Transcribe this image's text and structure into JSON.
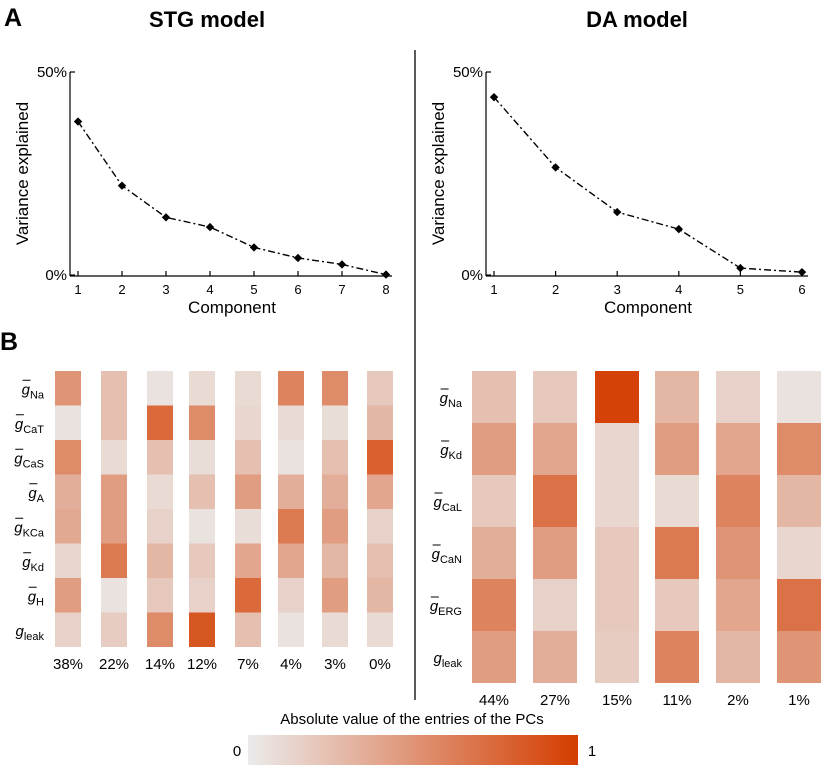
{
  "figure": {
    "panel_a_letter": "A",
    "panel_b_letter": "B",
    "colorbar": {
      "label": "Absolute value of the entries of the PCs",
      "min_label": "0",
      "max_label": "1",
      "color_min": "#ebebeb",
      "color_max": "#d43d00"
    },
    "line_color": "#000000",
    "divider_color": "#000000"
  },
  "chart_data": [
    {
      "id": "stg-variance",
      "type": "line",
      "title": "STG model",
      "xlabel": "Component",
      "ylabel": "Variance explained",
      "x": [
        1,
        2,
        3,
        4,
        5,
        6,
        7,
        8
      ],
      "y": [
        37.8,
        22.0,
        14.2,
        11.8,
        6.8,
        4.2,
        2.6,
        0.1
      ],
      "ylim": [
        0,
        50
      ],
      "yticks": [
        "0%",
        "50%"
      ],
      "line_style": "dash-dot",
      "marker": "diamond"
    },
    {
      "id": "da-variance",
      "type": "line",
      "title": "DA model",
      "xlabel": "Component",
      "ylabel": "Variance explained",
      "x": [
        1,
        2,
        3,
        4,
        5,
        6
      ],
      "y": [
        43.8,
        26.5,
        15.5,
        11.3,
        1.7,
        0.7
      ],
      "ylim": [
        0,
        50
      ],
      "yticks": [
        "0%",
        "50%"
      ],
      "line_style": "dash-dot",
      "marker": "diamond"
    },
    {
      "id": "stg-pc-heatmap",
      "type": "heatmap",
      "rows": [
        {
          "base": "g",
          "sub": "Na"
        },
        {
          "base": "g",
          "sub": "CaT"
        },
        {
          "base": "g",
          "sub": "CaS"
        },
        {
          "base": "g",
          "sub": "A"
        },
        {
          "base": "g",
          "sub": "KCa"
        },
        {
          "base": "g",
          "sub": "Kd"
        },
        {
          "base": "g",
          "sub": "H"
        },
        {
          "base": "g",
          "sub": "leak"
        }
      ],
      "row_bar": [
        true,
        true,
        true,
        true,
        true,
        true,
        true,
        false
      ],
      "columns": [
        "38%",
        "22%",
        "14%",
        "12%",
        "7%",
        "4%",
        "3%",
        "0%"
      ],
      "values": [
        [
          0.5,
          0.25,
          0.05,
          0.1,
          0.1,
          0.6,
          0.55,
          0.2
        ],
        [
          0.05,
          0.25,
          0.75,
          0.55,
          0.12,
          0.1,
          0.08,
          0.3
        ],
        [
          0.55,
          0.1,
          0.25,
          0.08,
          0.25,
          0.05,
          0.25,
          0.8
        ],
        [
          0.35,
          0.45,
          0.1,
          0.25,
          0.45,
          0.35,
          0.35,
          0.4
        ],
        [
          0.38,
          0.45,
          0.15,
          0.05,
          0.08,
          0.65,
          0.45,
          0.15
        ],
        [
          0.12,
          0.65,
          0.3,
          0.2,
          0.4,
          0.4,
          0.3,
          0.25
        ],
        [
          0.45,
          0.05,
          0.2,
          0.15,
          0.75,
          0.15,
          0.45,
          0.3
        ],
        [
          0.15,
          0.18,
          0.55,
          0.85,
          0.25,
          0.05,
          0.1,
          0.1
        ]
      ]
    },
    {
      "id": "da-pc-heatmap",
      "type": "heatmap",
      "rows": [
        {
          "base": "g",
          "sub": "Na"
        },
        {
          "base": "g",
          "sub": "Kd"
        },
        {
          "base": "g",
          "sub": "CaL"
        },
        {
          "base": "g",
          "sub": "CaN"
        },
        {
          "base": "g",
          "sub": "ERG"
        },
        {
          "base": "g",
          "sub": "leak"
        }
      ],
      "row_bar": [
        true,
        true,
        true,
        true,
        true,
        false
      ],
      "columns": [
        "44%",
        "27%",
        "15%",
        "11%",
        "2%",
        "1%"
      ],
      "values": [
        [
          0.25,
          0.2,
          0.97,
          0.3,
          0.15,
          0.05
        ],
        [
          0.45,
          0.4,
          0.12,
          0.45,
          0.4,
          0.55
        ],
        [
          0.2,
          0.7,
          0.12,
          0.1,
          0.6,
          0.3
        ],
        [
          0.35,
          0.45,
          0.2,
          0.65,
          0.5,
          0.12
        ],
        [
          0.6,
          0.15,
          0.2,
          0.2,
          0.4,
          0.7
        ],
        [
          0.45,
          0.35,
          0.18,
          0.6,
          0.3,
          0.5
        ]
      ]
    }
  ]
}
